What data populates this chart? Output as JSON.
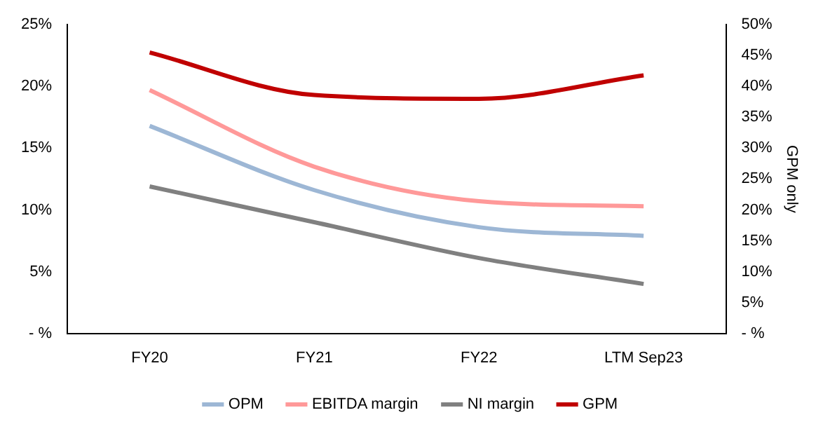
{
  "chart_data": {
    "type": "line",
    "y2label": "GPM only",
    "categories": [
      "FY20",
      "FY21",
      "FY22",
      "LTM Sep23"
    ],
    "series": [
      {
        "name": "OPM",
        "color": "#9db7d5",
        "values": [
          16.8,
          11.6,
          8.6,
          7.9
        ]
      },
      {
        "name": "EBITDA margin",
        "color": "#ff9999",
        "values": [
          19.7,
          13.5,
          10.7,
          10.3
        ]
      },
      {
        "name": "NI margin",
        "color": "#808080",
        "values": [
          11.9,
          9.0,
          6.1,
          4.0
        ]
      },
      {
        "name": "GPM",
        "color": "#c00000",
        "values": [
          45.5,
          38.6,
          38.0,
          41.8
        ],
        "axis": "y2"
      }
    ],
    "ylim": [
      0,
      25
    ],
    "yticks": [
      {
        "value": 0,
        "label": "- %"
      },
      {
        "value": 5,
        "label": "5%"
      },
      {
        "value": 10,
        "label": "10%"
      },
      {
        "value": 15,
        "label": "15%"
      },
      {
        "value": 20,
        "label": "20%"
      },
      {
        "value": 25,
        "label": "25%"
      }
    ],
    "y2lim": [
      0,
      50
    ],
    "y2ticks": [
      {
        "value": 0,
        "label": "- %"
      },
      {
        "value": 5,
        "label": "5%"
      },
      {
        "value": 10,
        "label": "10%"
      },
      {
        "value": 15,
        "label": "15%"
      },
      {
        "value": 20,
        "label": "20%"
      },
      {
        "value": 25,
        "label": "25%"
      },
      {
        "value": 30,
        "label": "30%"
      },
      {
        "value": 35,
        "label": "35%"
      },
      {
        "value": 40,
        "label": "40%"
      },
      {
        "value": 45,
        "label": "45%"
      },
      {
        "value": 50,
        "label": "50%"
      }
    ],
    "grid": false,
    "legend": "bottom",
    "marker": "none",
    "line_style": "solid"
  }
}
